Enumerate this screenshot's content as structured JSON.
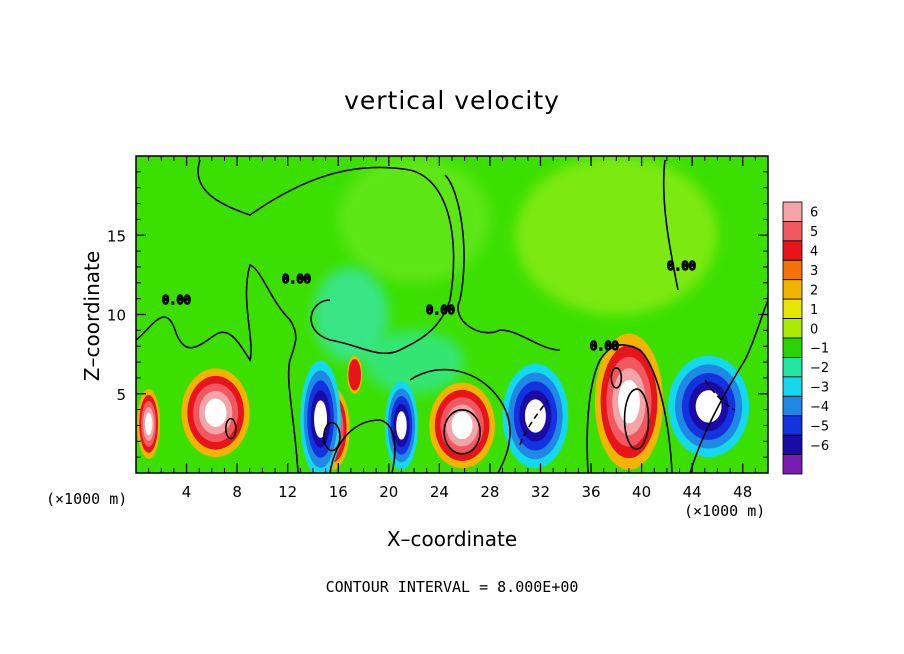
{
  "chart_data": {
    "type": "heatmap",
    "title": "vertical velocity",
    "xlabel": "X–coordinate",
    "ylabel": "Z–coordinate",
    "x_unit_left": "(×1000 m)",
    "x_unit_right": "(×1000 m)",
    "xlim": [
      0,
      50
    ],
    "ylim": [
      0,
      20
    ],
    "x_ticks": [
      4,
      8,
      12,
      16,
      20,
      24,
      28,
      32,
      36,
      40,
      44,
      48
    ],
    "y_ticks": [
      5,
      10,
      15
    ],
    "colorbar": {
      "levels": [
        6,
        5,
        4,
        3,
        2,
        1,
        0,
        -1,
        -2,
        -3,
        -4,
        -5,
        -6
      ],
      "colors": [
        "#f3a4a8",
        "#f2585f",
        "#e8141c",
        "#f3720a",
        "#f2b400",
        "#e6e600",
        "#aaec00",
        "#2ad400",
        "#22e6a2",
        "#14d8ee",
        "#1f88e4",
        "#1433e0",
        "#1a0aa8",
        "#7a1bb4"
      ]
    },
    "contour_labels": [
      "0.00",
      "0.00",
      "0.00",
      "0.00",
      "0.00"
    ],
    "contour_interval_text": "CONTOUR INTERVAL = 8.000E+00",
    "features": [
      {
        "kind": "updraft",
        "x": 1.0,
        "z": 3.1,
        "rx": 0.9,
        "rz": 2.2,
        "peak": 8
      },
      {
        "kind": "updraft",
        "x": 6.3,
        "z": 3.8,
        "rx": 2.7,
        "rz": 2.8,
        "peak": 8
      },
      {
        "kind": "updraft",
        "x": 15.5,
        "z": 2.8,
        "rx": 1.4,
        "rz": 2.6,
        "peak": 8
      },
      {
        "kind": "updraft",
        "x": 17.3,
        "z": 6.2,
        "rx": 0.6,
        "rz": 1.2,
        "peak": 4
      },
      {
        "kind": "updraft",
        "x": 25.8,
        "z": 3.0,
        "rx": 2.6,
        "rz": 2.7,
        "peak": 8
      },
      {
        "kind": "updraft",
        "x": 39.0,
        "z": 4.5,
        "rx": 2.7,
        "rz": 4.3,
        "peak": 8
      },
      {
        "kind": "downdraft",
        "x": 14.6,
        "z": 3.4,
        "rx": 1.6,
        "rz": 3.7,
        "peak": -6
      },
      {
        "kind": "downdraft",
        "x": 21.0,
        "z": 3.0,
        "rx": 1.3,
        "rz": 2.8,
        "peak": -6
      },
      {
        "kind": "downdraft",
        "x": 31.6,
        "z": 3.6,
        "rx": 2.6,
        "rz": 3.3,
        "peak": -6
      },
      {
        "kind": "downdraft",
        "x": 45.3,
        "z": 4.2,
        "rx": 3.2,
        "rz": 3.2,
        "peak": -6
      }
    ]
  }
}
